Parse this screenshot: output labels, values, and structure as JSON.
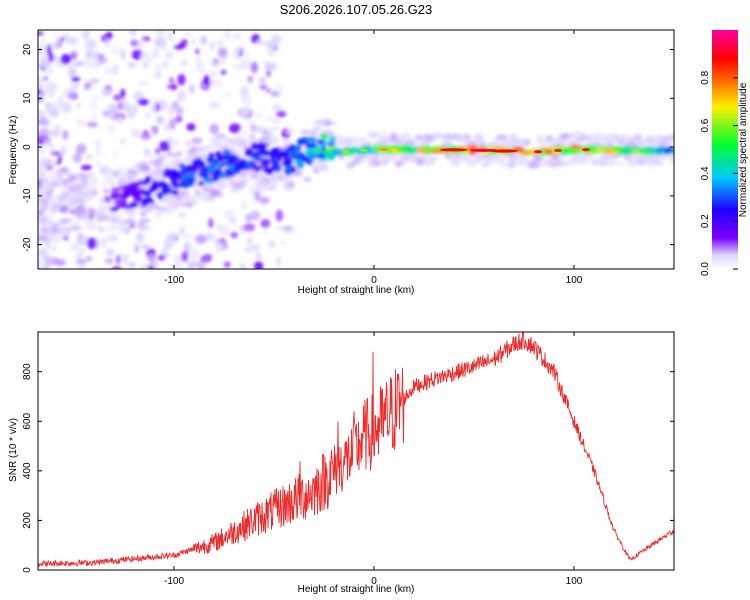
{
  "title": "S206.2026.107.05.26.G23",
  "chart_data": [
    {
      "type": "heatmap",
      "xlabel": "Height of straight line (km)",
      "ylabel": "Frequency (Hz)",
      "xlim": [
        -168,
        150
      ],
      "ylim": [
        -25,
        24
      ],
      "xticks": [
        -100,
        0,
        100
      ],
      "xtick_labels": [
        "-100",
        "0",
        "100"
      ],
      "yticks": [
        -20,
        -10,
        0,
        10,
        20
      ],
      "ytick_labels": [
        "-20",
        "-10",
        "0",
        "10",
        "20"
      ],
      "colorbar": {
        "label": "Normalized spectral amplitude",
        "range": [
          0,
          1
        ],
        "ticks": [
          0.0,
          0.2,
          0.4,
          0.6,
          0.8
        ],
        "tick_labels": [
          "0.0",
          "0.2",
          "0.4",
          "0.6",
          "0.8"
        ],
        "colors": [
          "#ffffff",
          "#7a00ff",
          "#2000ff",
          "#00c8ff",
          "#00ff30",
          "#ffee00",
          "#ff7000",
          "#ff0000",
          "#ff00a0"
        ]
      },
      "ridge": {
        "x": [
          -168,
          -120,
          -100,
          -80,
          -60,
          -45,
          -35,
          -25,
          -15,
          0,
          20,
          50,
          80,
          100,
          150
        ],
        "frequency_hz": [
          -13,
          -10,
          -7,
          -4,
          -2,
          -3,
          -1,
          0,
          -1,
          -0.5,
          -0.5,
          -0.6,
          -1,
          -0.5,
          -0.8
        ],
        "amplitude": [
          0.05,
          0.2,
          0.3,
          0.35,
          0.3,
          0.3,
          0.4,
          0.5,
          0.55,
          0.6,
          0.7,
          0.85,
          0.8,
          0.85,
          0.45
        ]
      }
    },
    {
      "type": "line",
      "xlabel": "Height of straight line (km)",
      "ylabel": "SNR (10 * v/v)",
      "xlim": [
        -168,
        150
      ],
      "ylim": [
        0,
        960
      ],
      "xticks": [
        -100,
        0,
        100
      ],
      "xtick_labels": [
        "-100",
        "0",
        "100"
      ],
      "yticks": [
        0,
        200,
        400,
        600,
        800
      ],
      "ytick_labels": [
        "0",
        "200",
        "400",
        "600",
        "800"
      ],
      "color": "#ee2a2a",
      "series": [
        {
          "name": "SNR",
          "x": [
            -168,
            -140,
            -120,
            -100,
            -80,
            -60,
            -40,
            -30,
            -20,
            -10,
            -5,
            0,
            10,
            20,
            30,
            50,
            60,
            70,
            75,
            80,
            90,
            100,
            110,
            120,
            128,
            135,
            150
          ],
          "values": [
            25,
            30,
            45,
            60,
            110,
            200,
            280,
            320,
            400,
            470,
            540,
            560,
            640,
            740,
            770,
            820,
            850,
            910,
            930,
            900,
            800,
            600,
            400,
            160,
            40,
            80,
            160
          ]
        }
      ],
      "spikes": [
        {
          "x": -0.5,
          "value": 880
        },
        {
          "x": -10,
          "value": 640
        },
        {
          "x": -37,
          "value": 440
        },
        {
          "x": -18,
          "value": 600
        }
      ]
    }
  ]
}
